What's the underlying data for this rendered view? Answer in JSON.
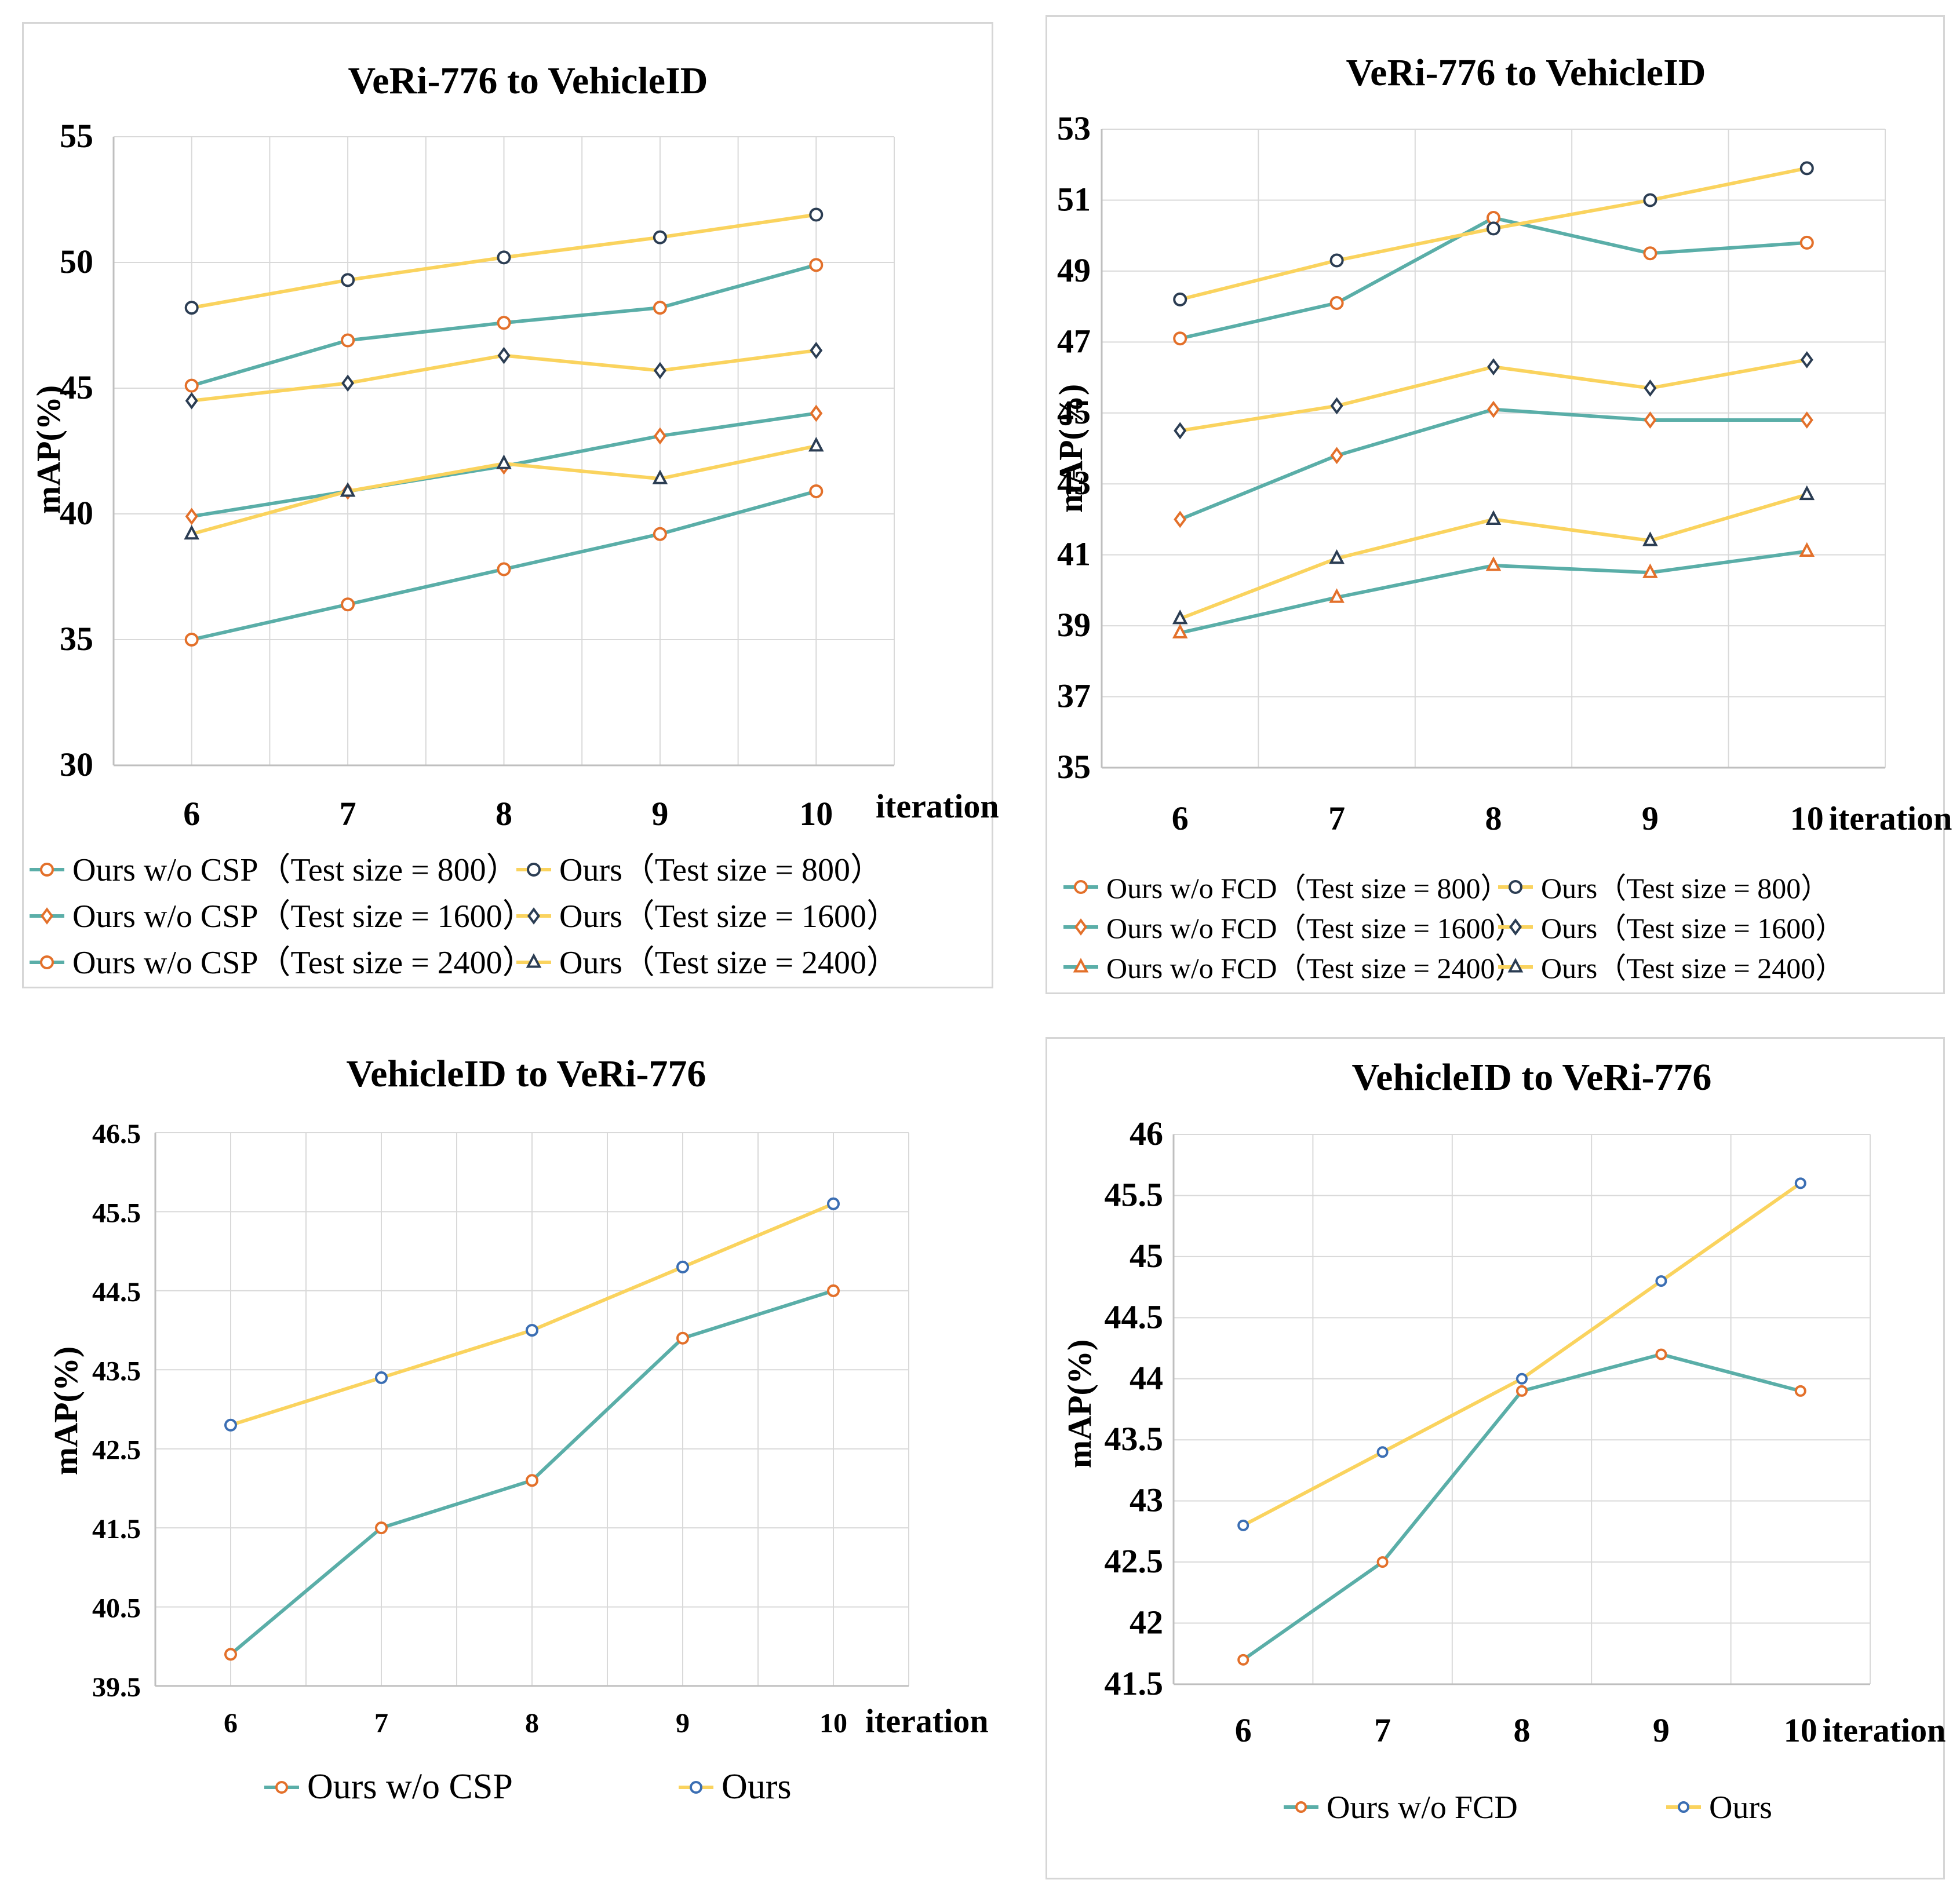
{
  "colors": {
    "teal": "#5aaea8",
    "yellow": "#fad35e",
    "orange": "#e3702a",
    "navy": "#2b3d53",
    "blue": "#3b6eb3",
    "grid": "#d9d9d9"
  },
  "chart_data": [
    {
      "type": "line",
      "title": "VeRi-776 to VehicleID",
      "xlabel": "iteration",
      "ylabel": "mAP(%)",
      "x": [
        6,
        7,
        8,
        9,
        10
      ],
      "x_ticks": [
        "6",
        "7",
        "8",
        "9",
        "10"
      ],
      "y_ticks": [
        "30",
        "35",
        "40",
        "45",
        "50",
        "55"
      ],
      "ylim": [
        30,
        55
      ],
      "legend_columns": 2,
      "series": [
        {
          "name": "Ours w/o CSP（Test size = 800）",
          "line": "teal",
          "marker": "circle",
          "marker_color": "orange",
          "values": [
            45.1,
            46.9,
            47.6,
            48.2,
            49.9
          ]
        },
        {
          "name": "Ours（Test size = 800）",
          "line": "yellow",
          "marker": "circle",
          "marker_color": "navy",
          "values": [
            48.2,
            49.3,
            50.2,
            51.0,
            51.9
          ]
        },
        {
          "name": "Ours w/o CSP（Test size = 1600）",
          "line": "teal",
          "marker": "diamond",
          "marker_color": "orange",
          "values": [
            39.9,
            40.9,
            41.9,
            43.1,
            44.0
          ]
        },
        {
          "name": "Ours（Test size = 1600）",
          "line": "yellow",
          "marker": "diamond",
          "marker_color": "navy",
          "values": [
            44.5,
            45.2,
            46.3,
            45.7,
            46.5
          ]
        },
        {
          "name": "Ours w/o CSP（Test size = 2400）",
          "line": "teal",
          "marker": "circle",
          "marker_color": "orange",
          "values": [
            35.0,
            36.4,
            37.8,
            39.2,
            40.9
          ]
        },
        {
          "name": "Ours（Test size = 2400）",
          "line": "yellow",
          "marker": "triangle",
          "marker_color": "navy",
          "values": [
            39.2,
            40.9,
            42.0,
            41.4,
            42.7
          ]
        }
      ]
    },
    {
      "type": "line",
      "title": "VeRi-776 to VehicleID",
      "xlabel": "iteration",
      "ylabel": "mAP(%)",
      "x": [
        6,
        7,
        8,
        9,
        10
      ],
      "x_ticks": [
        "6",
        "7",
        "8",
        "9",
        "10"
      ],
      "y_ticks": [
        "35",
        "37",
        "39",
        "41",
        "43",
        "45",
        "47",
        "49",
        "51",
        "53"
      ],
      "ylim": [
        35,
        53
      ],
      "legend_columns": 2,
      "series": [
        {
          "name": "Ours w/o FCD（Test size = 800）",
          "line": "teal",
          "marker": "circle",
          "marker_color": "orange",
          "values": [
            47.1,
            48.1,
            50.5,
            49.5,
            49.8
          ]
        },
        {
          "name": "Ours（Test size = 800）",
          "line": "yellow",
          "marker": "circle",
          "marker_color": "navy",
          "values": [
            48.2,
            49.3,
            50.2,
            51.0,
            51.9
          ]
        },
        {
          "name": "Ours w/o FCD（Test size = 1600）",
          "line": "teal",
          "marker": "diamond",
          "marker_color": "orange",
          "values": [
            42.0,
            43.8,
            45.1,
            44.8,
            44.8
          ]
        },
        {
          "name": "Ours（Test size = 1600）",
          "line": "yellow",
          "marker": "diamond",
          "marker_color": "navy",
          "values": [
            44.5,
            45.2,
            46.3,
            45.7,
            46.5
          ]
        },
        {
          "name": "Ours w/o FCD（Test size = 2400）",
          "line": "teal",
          "marker": "triangle",
          "marker_color": "orange",
          "values": [
            38.8,
            39.8,
            40.7,
            40.5,
            41.1
          ]
        },
        {
          "name": "Ours（Test size = 2400）",
          "line": "yellow",
          "marker": "triangle",
          "marker_color": "navy",
          "values": [
            39.2,
            40.9,
            42.0,
            41.4,
            42.7
          ]
        }
      ]
    },
    {
      "type": "line",
      "title": "VehicleID to VeRi-776",
      "xlabel": "iteration",
      "ylabel": "mAP(%)",
      "x": [
        6,
        7,
        8,
        9,
        10
      ],
      "x_ticks": [
        "6",
        "7",
        "8",
        "9",
        "10"
      ],
      "y_ticks": [
        "39.5",
        "40.5",
        "41.5",
        "42.5",
        "43.5",
        "44.5",
        "45.5",
        "46.5"
      ],
      "ylim": [
        39.5,
        46.5
      ],
      "legend_columns": 2,
      "series": [
        {
          "name": "Ours w/o CSP",
          "line": "teal",
          "marker": "circle",
          "marker_color": "orange",
          "values": [
            39.9,
            41.5,
            42.1,
            43.9,
            44.5
          ]
        },
        {
          "name": "Ours",
          "line": "yellow",
          "marker": "circle",
          "marker_color": "blue",
          "values": [
            42.8,
            43.4,
            44.0,
            44.8,
            45.6
          ]
        }
      ]
    },
    {
      "type": "line",
      "title": "VehicleID to VeRi-776",
      "xlabel": "iteration",
      "ylabel": "mAP(%)",
      "x": [
        6,
        7,
        8,
        9,
        10
      ],
      "x_ticks": [
        "6",
        "7",
        "8",
        "9",
        "10"
      ],
      "y_ticks": [
        "41.5",
        "42",
        "42.5",
        "43",
        "43.5",
        "44",
        "44.5",
        "45",
        "45.5",
        "46"
      ],
      "ylim": [
        41.5,
        46
      ],
      "legend_columns": 2,
      "series": [
        {
          "name": "Ours w/o FCD",
          "line": "teal",
          "marker": "circle",
          "marker_color": "orange",
          "values": [
            41.7,
            42.5,
            43.9,
            44.2,
            43.9
          ]
        },
        {
          "name": "Ours",
          "line": "yellow",
          "marker": "circle",
          "marker_color": "blue",
          "values": [
            42.8,
            43.4,
            44.0,
            44.8,
            45.6
          ]
        }
      ]
    }
  ]
}
